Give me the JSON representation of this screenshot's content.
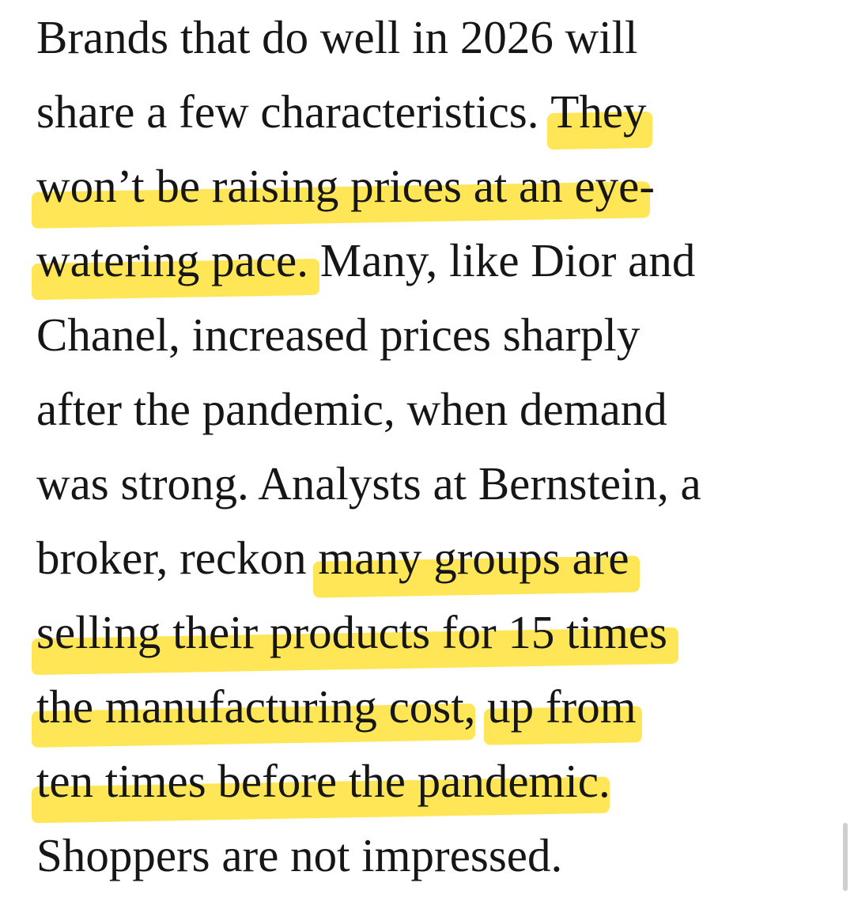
{
  "article": {
    "lines": [
      {
        "parts": [
          {
            "text": "Brands that do well in 2026 will",
            "highlight": false
          }
        ]
      },
      {
        "parts": [
          {
            "text": "share a few characteristics. ",
            "highlight": false
          },
          {
            "text": "They",
            "highlight": true
          }
        ]
      },
      {
        "parts": [
          {
            "text": "won’t be raising prices at an eye",
            "highlight": true
          },
          {
            "text": "-",
            "highlight": false
          }
        ]
      },
      {
        "parts": [
          {
            "text": "watering pace.",
            "highlight": true
          },
          {
            "text": " Many, like Dior and",
            "highlight": false
          }
        ]
      },
      {
        "parts": [
          {
            "text": "Chanel, increased prices sharply",
            "highlight": false
          }
        ]
      },
      {
        "parts": [
          {
            "text": "after the pandemic, when demand",
            "highlight": false
          }
        ]
      },
      {
        "parts": [
          {
            "text": "was strong. Analysts at Bernstein, a",
            "highlight": false
          }
        ]
      },
      {
        "parts": [
          {
            "text": "broker, reckon ",
            "highlight": false
          },
          {
            "text": "many groups are",
            "highlight": true
          }
        ]
      },
      {
        "parts": [
          {
            "text": "selling their products for 15 times",
            "highlight": true
          }
        ]
      },
      {
        "parts": [
          {
            "text": "the manufacturing cost",
            "highlight": true
          },
          {
            "text": ", ",
            "highlight": false
          },
          {
            "text": "up from",
            "highlight": true
          }
        ]
      },
      {
        "parts": [
          {
            "text": "ten times before the pandemic",
            "highlight": true
          },
          {
            "text": ".",
            "highlight": false
          }
        ]
      },
      {
        "parts": [
          {
            "text": "Shoppers are not impressed.",
            "highlight": false
          }
        ]
      }
    ]
  },
  "colors": {
    "text": "#161616",
    "highlight": "#ffe23b",
    "background": "#ffffff",
    "scrollbar": "#cfcfcf"
  }
}
